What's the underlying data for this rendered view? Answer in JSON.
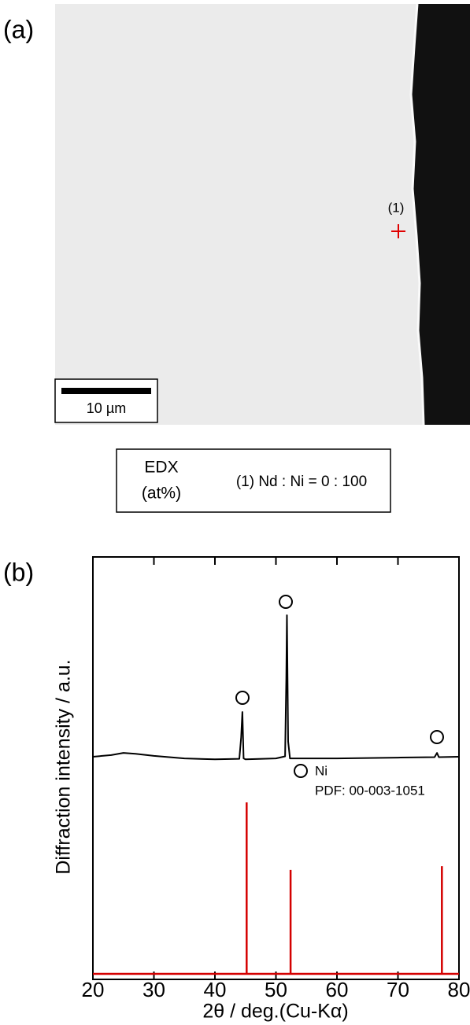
{
  "panel_a": {
    "label": "(a)",
    "point_label": "(1)",
    "scale_bar": "10 µm",
    "edx": {
      "title": "EDX",
      "unit": "(at%)",
      "result": "(1) Nd : Ni = 0 : 100"
    }
  },
  "chart_data": {
    "type": "line",
    "panel_label": "(b)",
    "xlabel": "2θ / deg.(Cu-Kα)",
    "ylabel": "Diffraction intensity / a.u.",
    "xlim": [
      20,
      80
    ],
    "xticks": [
      20,
      30,
      40,
      50,
      60,
      70,
      80
    ],
    "ylim": [
      -1.3,
      98.7
    ],
    "series": [
      {
        "color": "#000000",
        "x": [
          20,
          23,
          25,
          27,
          30,
          35,
          40,
          44,
          44.3,
          44.5,
          44.7,
          45,
          50,
          51.5,
          51.7,
          51.8,
          52,
          52.3,
          55,
          60,
          70,
          76,
          76.4,
          76.7,
          80
        ],
        "values": [
          51.4,
          51.8,
          52.3,
          52.1,
          51.6,
          51.0,
          50.8,
          50.9,
          56,
          62.0,
          51,
          50.8,
          51,
          51.5,
          70,
          84.9,
          55,
          51,
          51,
          51,
          51.2,
          51.3,
          52.3,
          51.3,
          51.4
        ]
      },
      {
        "name": "Ni",
        "source": "PDF: 00-003-1051",
        "style": "stick",
        "color": "#d40000",
        "x": [
          45.2,
          52.4,
          77.2
        ],
        "values": [
          40.6,
          24.6,
          25.5
        ]
      }
    ]
  }
}
